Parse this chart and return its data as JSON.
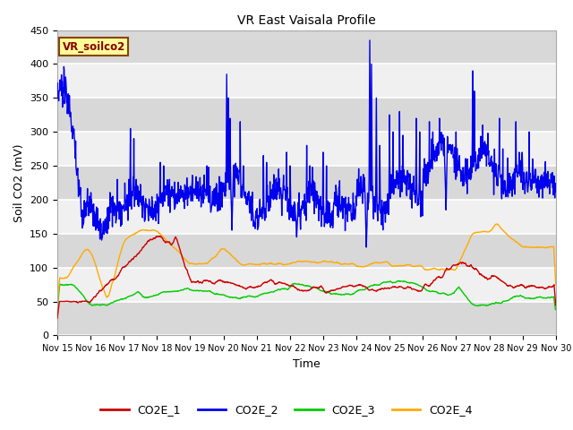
{
  "title": "VR East Vaisala Profile",
  "xlabel": "Time",
  "ylabel": "Soil CO2 (mV)",
  "ylim": [
    0,
    450
  ],
  "xlim": [
    0,
    15
  ],
  "background_color": "#ffffff",
  "plot_bg_light": "#f0f0f0",
  "plot_bg_dark": "#d8d8d8",
  "grid_color": "#ffffff",
  "series_colors": {
    "CO2E_1": "#cc0000",
    "CO2E_2": "#0000ee",
    "CO2E_3": "#00cc00",
    "CO2E_4": "#ffaa00"
  },
  "annotation_label": "VR_soilco2",
  "annotation_bg": "#ffff99",
  "annotation_border": "#884400",
  "annotation_text_color": "#880000",
  "x_tick_labels": [
    "Nov 15",
    "Nov 16",
    "Nov 17",
    "Nov 18",
    "Nov 19",
    "Nov 20",
    "Nov 21",
    "Nov 22",
    "Nov 23",
    "Nov 24",
    "Nov 25",
    "Nov 26",
    "Nov 27",
    "Nov 28",
    "Nov 29",
    "Nov 30"
  ],
  "legend_entries": [
    "CO2E_1",
    "CO2E_2",
    "CO2E_3",
    "CO2E_4"
  ],
  "yticks": [
    0,
    50,
    100,
    150,
    200,
    250,
    300,
    350,
    400,
    450
  ]
}
